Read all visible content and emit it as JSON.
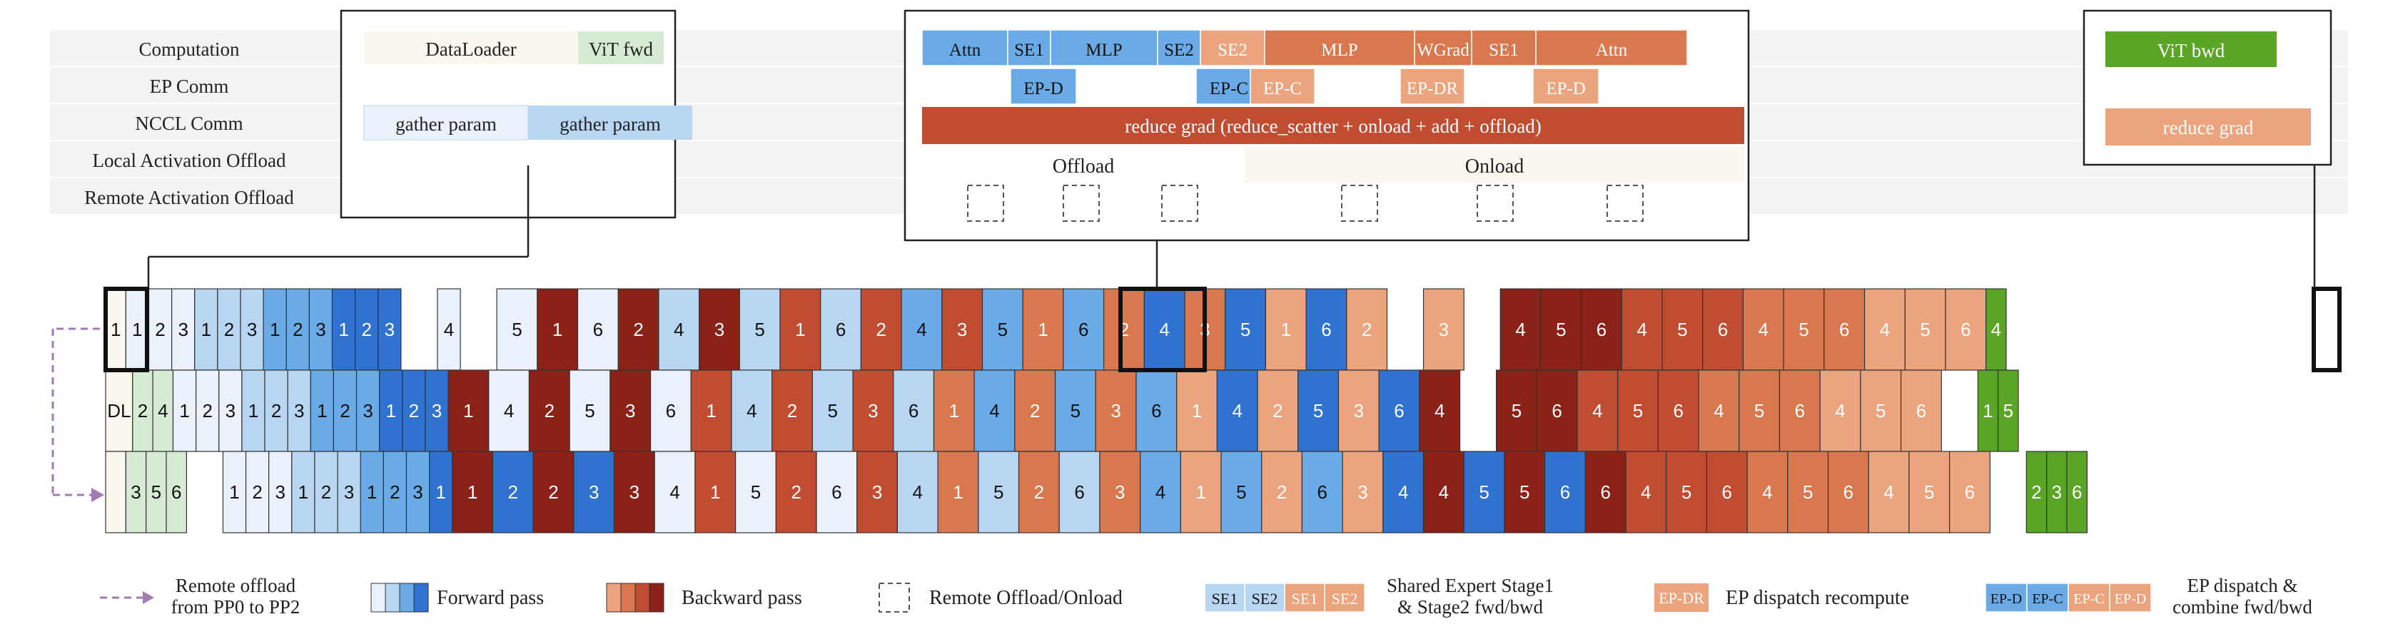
{
  "colors": {
    "band": "#f3f3f4",
    "fwd": [
      "#eaf1fa",
      "#b8d6f2",
      "#6aaae6",
      "#2f72cf"
    ],
    "bwd": [
      "#eba47d",
      "#d9774f",
      "#c04d31",
      "#8b2218"
    ],
    "dl": "#faf7ee",
    "vit_fwd": "#d7ead3",
    "vit_bwd": "#5aa526",
    "gather1": "#eaf1fa",
    "gather2": "#b8d6f2",
    "offload": "#ffffff",
    "onload": "#faf7ee",
    "legend_arrow": "#a37bb3"
  },
  "row_labels": [
    "Computation",
    "EP Comm",
    "NCCL Comm",
    "Local Activation Offload",
    "Remote Activation Offload"
  ],
  "left_box": {
    "dataloader": "DataLoader",
    "vit_fwd": "ViT fwd",
    "gather1": "gather param",
    "gather2": "gather param"
  },
  "middle_box": {
    "computation": [
      "Attn",
      "SE1",
      "MLP",
      "SE2",
      "SE2",
      "MLP",
      "WGrad",
      "SE1",
      "Attn"
    ],
    "ep_comm": [
      "EP-D",
      "EP-C",
      "EP-C",
      "EP-DR",
      "EP-D"
    ],
    "reduce_grad": "reduce grad (reduce_scatter + onload + add + offload)",
    "offload": "Offload",
    "onload": "Onload"
  },
  "right_box": {
    "vit_bwd": "ViT bwd",
    "reduce_grad": "reduce grad"
  },
  "pipeline": {
    "row0": [
      {
        "t": "1",
        "c": "dl"
      },
      {
        "t": "1",
        "c": "f0"
      },
      {
        "t": "2",
        "c": "f0"
      },
      {
        "t": "3",
        "c": "f0"
      },
      {
        "t": "1",
        "c": "f1"
      },
      {
        "t": "2",
        "c": "f1"
      },
      {
        "t": "3",
        "c": "f1"
      },
      {
        "t": "1",
        "c": "f2"
      },
      {
        "t": "2",
        "c": "f2"
      },
      {
        "t": "3",
        "c": "f2"
      },
      {
        "t": "1",
        "c": "f3"
      },
      {
        "t": "2",
        "c": "f3"
      },
      {
        "t": "3",
        "c": "f3"
      },
      {
        "t": "",
        "c": "gap"
      },
      {
        "t": "4",
        "c": "f0"
      },
      {
        "t": "",
        "c": "gap"
      },
      {
        "t": "5",
        "c": "f0"
      },
      {
        "t": "1",
        "c": "b3"
      },
      {
        "t": "6",
        "c": "f0"
      },
      {
        "t": "2",
        "c": "b3"
      },
      {
        "t": "4",
        "c": "f1"
      },
      {
        "t": "3",
        "c": "b3"
      },
      {
        "t": "5",
        "c": "f1"
      },
      {
        "t": "1",
        "c": "b2"
      },
      {
        "t": "6",
        "c": "f1"
      },
      {
        "t": "2",
        "c": "b2"
      },
      {
        "t": "4",
        "c": "f2"
      },
      {
        "t": "3",
        "c": "b2"
      },
      {
        "t": "5",
        "c": "f2"
      },
      {
        "t": "1",
        "c": "b1"
      },
      {
        "t": "6",
        "c": "f2"
      },
      {
        "t": "2",
        "c": "b1"
      },
      {
        "t": "4",
        "c": "f3"
      },
      {
        "t": "3",
        "c": "b1"
      },
      {
        "t": "5",
        "c": "f3"
      },
      {
        "t": "1",
        "c": "b0"
      },
      {
        "t": "6",
        "c": "f3"
      },
      {
        "t": "2",
        "c": "b0"
      },
      {
        "t": "",
        "c": "gap"
      },
      {
        "t": "3",
        "c": "b0"
      },
      {
        "t": "",
        "c": "gap"
      },
      {
        "t": "4",
        "c": "b3"
      },
      {
        "t": "5",
        "c": "b3"
      },
      {
        "t": "6",
        "c": "b3"
      },
      {
        "t": "4",
        "c": "b2"
      },
      {
        "t": "5",
        "c": "b2"
      },
      {
        "t": "6",
        "c": "b2"
      },
      {
        "t": "4",
        "c": "b1"
      },
      {
        "t": "5",
        "c": "b1"
      },
      {
        "t": "6",
        "c": "b1"
      },
      {
        "t": "4",
        "c": "b0"
      },
      {
        "t": "5",
        "c": "b0"
      },
      {
        "t": "6",
        "c": "b0"
      },
      {
        "t": "4",
        "c": "vb"
      }
    ],
    "row1": [
      {
        "t": "DL",
        "c": "dl"
      },
      {
        "t": "2",
        "c": "vf"
      },
      {
        "t": "4",
        "c": "vf"
      },
      {
        "t": "1",
        "c": "f0"
      },
      {
        "t": "2",
        "c": "f0"
      },
      {
        "t": "3",
        "c": "f0"
      },
      {
        "t": "1",
        "c": "f1"
      },
      {
        "t": "2",
        "c": "f1"
      },
      {
        "t": "3",
        "c": "f1"
      },
      {
        "t": "1",
        "c": "f2"
      },
      {
        "t": "2",
        "c": "f2"
      },
      {
        "t": "3",
        "c": "f2"
      },
      {
        "t": "1",
        "c": "f3"
      },
      {
        "t": "2",
        "c": "f3"
      },
      {
        "t": "3",
        "c": "f3"
      },
      {
        "t": "1",
        "c": "b3"
      },
      {
        "t": "4",
        "c": "f0"
      },
      {
        "t": "2",
        "c": "b3"
      },
      {
        "t": "5",
        "c": "f0"
      },
      {
        "t": "3",
        "c": "b3"
      },
      {
        "t": "6",
        "c": "f0"
      },
      {
        "t": "1",
        "c": "b2"
      },
      {
        "t": "4",
        "c": "f1"
      },
      {
        "t": "2",
        "c": "b2"
      },
      {
        "t": "5",
        "c": "f1"
      },
      {
        "t": "3",
        "c": "b2"
      },
      {
        "t": "6",
        "c": "f1"
      },
      {
        "t": "1",
        "c": "b1"
      },
      {
        "t": "4",
        "c": "f2"
      },
      {
        "t": "2",
        "c": "b1"
      },
      {
        "t": "5",
        "c": "f2"
      },
      {
        "t": "3",
        "c": "b1"
      },
      {
        "t": "6",
        "c": "f2"
      },
      {
        "t": "1",
        "c": "b0"
      },
      {
        "t": "4",
        "c": "f3"
      },
      {
        "t": "2",
        "c": "b0"
      },
      {
        "t": "5",
        "c": "f3"
      },
      {
        "t": "3",
        "c": "b0"
      },
      {
        "t": "6",
        "c": "f3"
      },
      {
        "t": "4",
        "c": "b3"
      },
      {
        "t": "",
        "c": "gap"
      },
      {
        "t": "5",
        "c": "b3"
      },
      {
        "t": "6",
        "c": "b3"
      },
      {
        "t": "4",
        "c": "b2"
      },
      {
        "t": "5",
        "c": "b2"
      },
      {
        "t": "6",
        "c": "b2"
      },
      {
        "t": "4",
        "c": "b1"
      },
      {
        "t": "5",
        "c": "b1"
      },
      {
        "t": "6",
        "c": "b1"
      },
      {
        "t": "4",
        "c": "b0"
      },
      {
        "t": "5",
        "c": "b0"
      },
      {
        "t": "6",
        "c": "b0"
      },
      {
        "t": "",
        "c": "gap"
      },
      {
        "t": "1",
        "c": "vb"
      },
      {
        "t": "5",
        "c": "vb"
      }
    ],
    "row2": [
      {
        "t": "",
        "c": "dl"
      },
      {
        "t": "3",
        "c": "vf"
      },
      {
        "t": "5",
        "c": "vf"
      },
      {
        "t": "6",
        "c": "vf"
      },
      {
        "t": "",
        "c": "gap"
      },
      {
        "t": "1",
        "c": "f0"
      },
      {
        "t": "2",
        "c": "f0"
      },
      {
        "t": "3",
        "c": "f0"
      },
      {
        "t": "1",
        "c": "f1"
      },
      {
        "t": "2",
        "c": "f1"
      },
      {
        "t": "3",
        "c": "f1"
      },
      {
        "t": "1",
        "c": "f2"
      },
      {
        "t": "2",
        "c": "f2"
      },
      {
        "t": "3",
        "c": "f2"
      },
      {
        "t": "1",
        "c": "f3"
      },
      {
        "t": "1",
        "c": "b3"
      },
      {
        "t": "2",
        "c": "f3"
      },
      {
        "t": "2",
        "c": "b3"
      },
      {
        "t": "3",
        "c": "f3"
      },
      {
        "t": "3",
        "c": "b3"
      },
      {
        "t": "4",
        "c": "f0"
      },
      {
        "t": "1",
        "c": "b2"
      },
      {
        "t": "5",
        "c": "f0"
      },
      {
        "t": "2",
        "c": "b2"
      },
      {
        "t": "6",
        "c": "f0"
      },
      {
        "t": "3",
        "c": "b2"
      },
      {
        "t": "4",
        "c": "f1"
      },
      {
        "t": "1",
        "c": "b1"
      },
      {
        "t": "5",
        "c": "f1"
      },
      {
        "t": "2",
        "c": "b1"
      },
      {
        "t": "6",
        "c": "f1"
      },
      {
        "t": "3",
        "c": "b1"
      },
      {
        "t": "4",
        "c": "f2"
      },
      {
        "t": "1",
        "c": "b0"
      },
      {
        "t": "5",
        "c": "f2"
      },
      {
        "t": "2",
        "c": "b0"
      },
      {
        "t": "6",
        "c": "f2"
      },
      {
        "t": "3",
        "c": "b0"
      },
      {
        "t": "4",
        "c": "f3"
      },
      {
        "t": "4",
        "c": "b3"
      },
      {
        "t": "5",
        "c": "f3"
      },
      {
        "t": "5",
        "c": "b3"
      },
      {
        "t": "6",
        "c": "f3"
      },
      {
        "t": "6",
        "c": "b3"
      },
      {
        "t": "4",
        "c": "b2"
      },
      {
        "t": "5",
        "c": "b2"
      },
      {
        "t": "6",
        "c": "b2"
      },
      {
        "t": "4",
        "c": "b1"
      },
      {
        "t": "5",
        "c": "b1"
      },
      {
        "t": "6",
        "c": "b1"
      },
      {
        "t": "4",
        "c": "b0"
      },
      {
        "t": "5",
        "c": "b0"
      },
      {
        "t": "6",
        "c": "b0"
      },
      {
        "t": "",
        "c": "gap"
      },
      {
        "t": "2",
        "c": "vb"
      },
      {
        "t": "3",
        "c": "vb"
      },
      {
        "t": "6",
        "c": "vb"
      }
    ]
  },
  "legend": {
    "remote_offload": "Remote offload\nfrom PP0 to PP2",
    "forward": "Forward pass",
    "backward": "Backward pass",
    "remote_onload": "Remote Offload/Onload",
    "shared_expert": [
      "SE1",
      "SE2",
      "SE1",
      "SE2"
    ],
    "shared_expert_label": "Shared Expert Stage1\n& Stage2 fwd/bwd",
    "ep_dr": "EP-DR",
    "ep_dr_label": "EP dispatch recompute",
    "ep_dc": [
      "EP-D",
      "EP-C",
      "EP-C",
      "EP-D"
    ],
    "ep_dc_label": "EP dispatch &\ncombine fwd/bwd"
  }
}
